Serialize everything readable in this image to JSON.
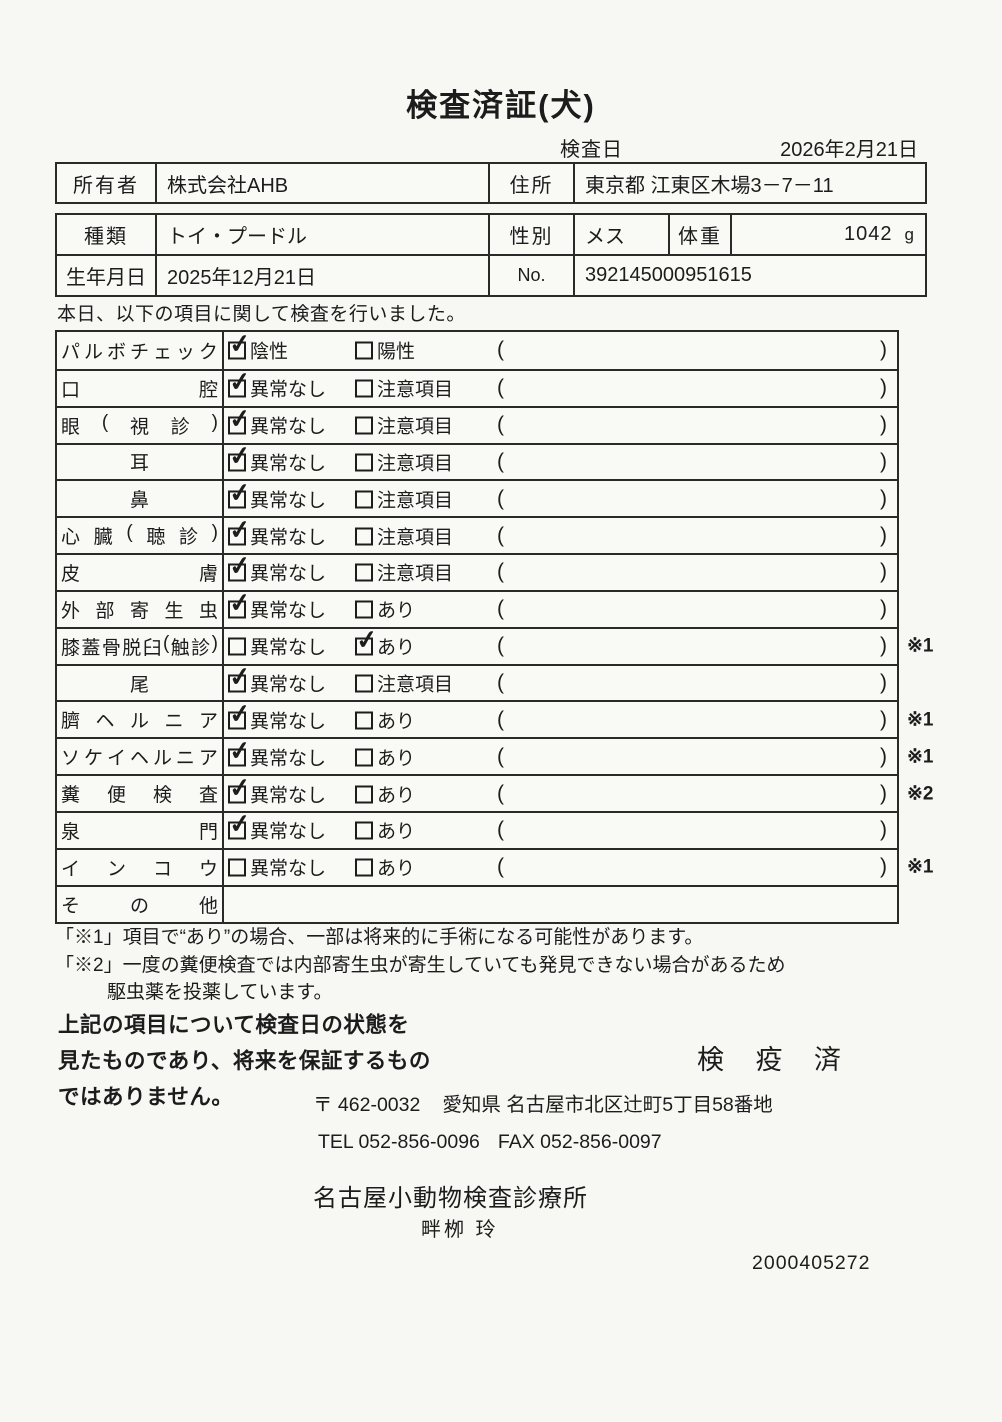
{
  "colors": {
    "paper": "#f7f7f4",
    "ink": "#1c1c1c",
    "border": "#2a2a2a"
  },
  "icons": {
    "check": "✓"
  },
  "title": "検査済証(犬)",
  "inspection_date": {
    "label": "検査日",
    "value": "2026年2月21日"
  },
  "owner_table": {
    "owner_label": "所有者",
    "owner_value": "株式会社AHB",
    "address_label": "住所",
    "address_value": "東京都 江東区木場3－7－11"
  },
  "info_table": {
    "breed_label": "種類",
    "breed_value": "トイ・プードル",
    "sex_label": "性別",
    "sex_value": "メス",
    "weight_label": "体重",
    "weight_value": "1042",
    "weight_unit": "g",
    "birth_label": "生年月日",
    "birth_value": "2025年12月21日",
    "no_label": "No.",
    "no_value": "392145000951615"
  },
  "intro": "本日、以下の項目に関して検査を行いました。",
  "exam_table": {
    "rows": [
      {
        "label": "パルボチェック",
        "align": "justify",
        "opt1": {
          "text": "陰性",
          "checked": true
        },
        "opt2": {
          "text": "陽性",
          "checked": false
        },
        "paren": true,
        "paren_content": "",
        "remark": ""
      },
      {
        "label": "口腔",
        "align": "justify",
        "opt1": {
          "text": "異常なし",
          "checked": true
        },
        "opt2": {
          "text": "注意項目",
          "checked": false
        },
        "paren": true,
        "paren_content": "",
        "remark": ""
      },
      {
        "label": "眼(視診)",
        "align": "justify",
        "opt1": {
          "text": "異常なし",
          "checked": true
        },
        "opt2": {
          "text": "注意項目",
          "checked": false
        },
        "paren": true,
        "paren_content": "",
        "remark": ""
      },
      {
        "label": "耳",
        "align": "center",
        "opt1": {
          "text": "異常なし",
          "checked": true
        },
        "opt2": {
          "text": "注意項目",
          "checked": false
        },
        "paren": true,
        "paren_content": "",
        "remark": ""
      },
      {
        "label": "鼻",
        "align": "center",
        "opt1": {
          "text": "異常なし",
          "checked": true
        },
        "opt2": {
          "text": "注意項目",
          "checked": false
        },
        "paren": true,
        "paren_content": "",
        "remark": ""
      },
      {
        "label": "心臓(聴診)",
        "align": "justify",
        "opt1": {
          "text": "異常なし",
          "checked": true
        },
        "opt2": {
          "text": "注意項目",
          "checked": false
        },
        "paren": true,
        "paren_content": "",
        "remark": ""
      },
      {
        "label": "皮膚",
        "align": "justify",
        "opt1": {
          "text": "異常なし",
          "checked": true
        },
        "opt2": {
          "text": "注意項目",
          "checked": false
        },
        "paren": true,
        "paren_content": "",
        "remark": ""
      },
      {
        "label": "外部寄生虫",
        "align": "justify",
        "opt1": {
          "text": "異常なし",
          "checked": true
        },
        "opt2": {
          "text": "あり",
          "checked": false
        },
        "paren": true,
        "paren_content": "",
        "remark": ""
      },
      {
        "label": "膝蓋骨脱臼(触診)",
        "align": "justify",
        "opt1": {
          "text": "異常なし",
          "checked": false
        },
        "opt2": {
          "text": "あり",
          "checked": true
        },
        "paren": true,
        "paren_content": "",
        "remark": "※1"
      },
      {
        "label": "尾",
        "align": "center",
        "opt1": {
          "text": "異常なし",
          "checked": true
        },
        "opt2": {
          "text": "注意項目",
          "checked": false
        },
        "paren": true,
        "paren_content": "",
        "remark": ""
      },
      {
        "label": "臍ヘルニア",
        "align": "justify",
        "opt1": {
          "text": "異常なし",
          "checked": true
        },
        "opt2": {
          "text": "あり",
          "checked": false
        },
        "paren": true,
        "paren_content": "",
        "remark": "※1"
      },
      {
        "label": "ソケイヘルニア",
        "align": "justify",
        "opt1": {
          "text": "異常なし",
          "checked": true
        },
        "opt2": {
          "text": "あり",
          "checked": false
        },
        "paren": true,
        "paren_content": "",
        "remark": "※1"
      },
      {
        "label": "糞便検査",
        "align": "justify",
        "opt1": {
          "text": "異常なし",
          "checked": true
        },
        "opt2": {
          "text": "あり",
          "checked": false
        },
        "paren": true,
        "paren_content": "",
        "remark": "※2"
      },
      {
        "label": "泉門",
        "align": "justify",
        "opt1": {
          "text": "異常なし",
          "checked": true
        },
        "opt2": {
          "text": "あり",
          "checked": false
        },
        "paren": true,
        "paren_content": "",
        "remark": ""
      },
      {
        "label": "インコウ",
        "align": "justify",
        "opt1": {
          "text": "異常なし",
          "checked": false
        },
        "opt2": {
          "text": "あり",
          "checked": false
        },
        "paren": true,
        "paren_content": "",
        "remark": "※1"
      },
      {
        "label": "その他",
        "align": "justify",
        "opt1": null,
        "opt2": null,
        "paren": false,
        "paren_content": "",
        "remark": ""
      }
    ]
  },
  "notes": {
    "note1": "「※1」項目で“あり”の場合、一部は将来的に手術になる可能性があります。",
    "note2": "「※2」一度の糞便検査では内部寄生虫が寄生していても発見できない場合があるため",
    "note2_cont": "駆虫薬を投薬しています。"
  },
  "disclaimer": {
    "line1": "上記の項目について検査日の状態を",
    "line2": "見たものであり、将来を保証するもの",
    "line3": "ではありません。"
  },
  "quarantine_stamp": "検 疫 済",
  "clinic": {
    "postal": "〒 462-0032",
    "address": "愛知県 名古屋市北区辻町5丁目58番地",
    "tel": "TEL 052-856-0096",
    "fax": "FAX 052-856-0097",
    "name": "名古屋小動物検査診療所",
    "person": "畔栁 玲"
  },
  "document_number": "2000405272"
}
